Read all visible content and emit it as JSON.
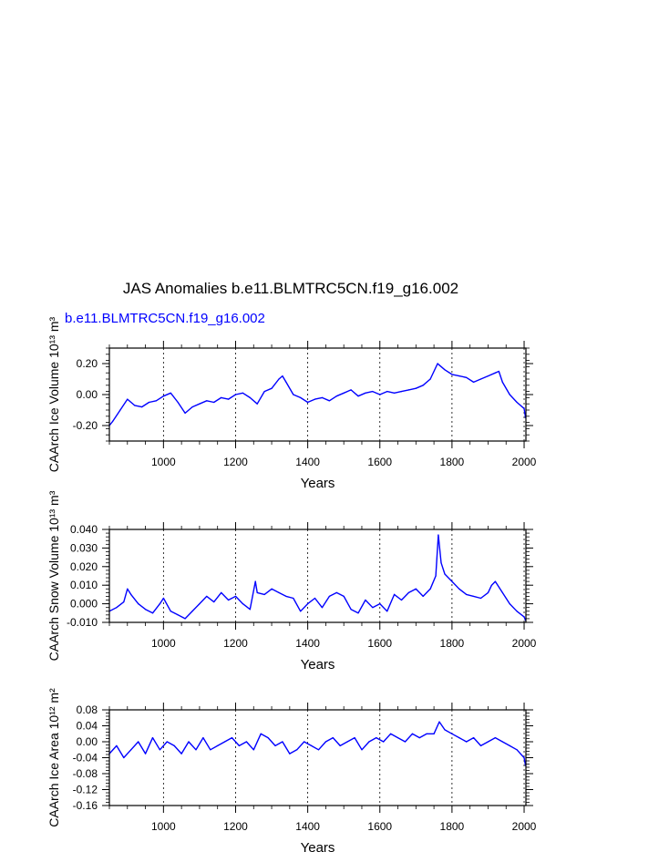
{
  "title": "JAS Anomalies b.e11.BLMTRC5CN.f19_g16.002",
  "legend_label": "b.e11.BLMTRC5CN.f19_g16.002",
  "colors": {
    "series": "#0000ff",
    "axis": "#000000"
  },
  "chart_data": [
    {
      "type": "line",
      "title": "",
      "xlabel": "Years",
      "ylabel": "CAArch Ice Volume 10¹³ m³",
      "xlim": [
        850,
        2005
      ],
      "ylim": [
        -0.3,
        0.3
      ],
      "xticks": [
        1000,
        1200,
        1400,
        1600,
        1800,
        2000
      ],
      "xtick_labels": [
        "1000",
        "1200",
        "1400",
        "1600",
        "1800",
        "2000"
      ],
      "yticks": [
        -0.2,
        0.0,
        0.2
      ],
      "ytick_labels": [
        "-0.20",
        "0.00",
        "0.20"
      ],
      "grid": "vertical dashed at major x ticks",
      "x": [
        850,
        860,
        880,
        900,
        920,
        940,
        960,
        980,
        1000,
        1020,
        1040,
        1060,
        1080,
        1100,
        1120,
        1140,
        1160,
        1180,
        1200,
        1220,
        1240,
        1260,
        1280,
        1300,
        1320,
        1330,
        1340,
        1360,
        1380,
        1400,
        1420,
        1440,
        1460,
        1480,
        1500,
        1520,
        1540,
        1560,
        1580,
        1600,
        1620,
        1640,
        1660,
        1680,
        1700,
        1720,
        1740,
        1760,
        1765,
        1780,
        1800,
        1820,
        1840,
        1860,
        1880,
        1900,
        1920,
        1930,
        1940,
        1960,
        1980,
        2000,
        2004
      ],
      "series": [
        {
          "name": "b.e11.BLMTRC5CN.f19_g16.002",
          "values": [
            -0.2,
            -0.17,
            -0.1,
            -0.03,
            -0.07,
            -0.08,
            -0.05,
            -0.04,
            -0.01,
            0.01,
            -0.05,
            -0.12,
            -0.08,
            -0.06,
            -0.04,
            -0.05,
            -0.02,
            -0.03,
            0.0,
            0.01,
            -0.02,
            -0.06,
            0.02,
            0.04,
            0.1,
            0.12,
            0.08,
            0.0,
            -0.02,
            -0.05,
            -0.03,
            -0.02,
            -0.04,
            -0.01,
            0.01,
            0.03,
            -0.01,
            0.01,
            0.02,
            0.0,
            0.02,
            0.01,
            0.02,
            0.03,
            0.04,
            0.06,
            0.1,
            0.2,
            0.19,
            0.16,
            0.13,
            0.12,
            0.11,
            0.08,
            0.1,
            0.12,
            0.14,
            0.15,
            0.08,
            0.0,
            -0.05,
            -0.09,
            -0.15
          ]
        }
      ]
    },
    {
      "type": "line",
      "title": "",
      "xlabel": "Years",
      "ylabel": "CAArch Snow Volume 10¹³ m³",
      "xlim": [
        850,
        2005
      ],
      "ylim": [
        -0.01,
        0.04
      ],
      "xticks": [
        1000,
        1200,
        1400,
        1600,
        1800,
        2000
      ],
      "xtick_labels": [
        "1000",
        "1200",
        "1400",
        "1600",
        "1800",
        "2000"
      ],
      "yticks": [
        -0.01,
        0.0,
        0.01,
        0.02,
        0.03,
        0.04
      ],
      "ytick_labels": [
        "-0.010",
        "0.000",
        "0.010",
        "0.020",
        "0.030",
        "0.040"
      ],
      "grid": "vertical dashed at major x ticks",
      "x": [
        850,
        870,
        890,
        900,
        910,
        930,
        950,
        970,
        990,
        1000,
        1020,
        1040,
        1060,
        1080,
        1100,
        1120,
        1140,
        1160,
        1180,
        1200,
        1220,
        1240,
        1255,
        1260,
        1280,
        1300,
        1320,
        1340,
        1360,
        1380,
        1400,
        1420,
        1440,
        1460,
        1480,
        1500,
        1520,
        1540,
        1560,
        1580,
        1600,
        1620,
        1640,
        1660,
        1680,
        1700,
        1720,
        1740,
        1755,
        1762,
        1770,
        1780,
        1800,
        1820,
        1840,
        1860,
        1880,
        1900,
        1910,
        1920,
        1940,
        1960,
        1980,
        2000,
        2004
      ],
      "series": [
        {
          "name": "b.e11.BLMTRC5CN.f19_g16.002",
          "values": [
            -0.004,
            -0.002,
            0.001,
            0.008,
            0.005,
            0.0,
            -0.003,
            -0.005,
            0.0,
            0.003,
            -0.004,
            -0.006,
            -0.008,
            -0.004,
            0.0,
            0.004,
            0.001,
            0.006,
            0.002,
            0.004,
            0.0,
            -0.003,
            0.012,
            0.006,
            0.005,
            0.008,
            0.006,
            0.004,
            0.003,
            -0.004,
            0.0,
            0.003,
            -0.002,
            0.004,
            0.006,
            0.004,
            -0.003,
            -0.005,
            0.002,
            -0.002,
            0.0,
            -0.004,
            0.005,
            0.002,
            0.006,
            0.008,
            0.004,
            0.008,
            0.015,
            0.037,
            0.022,
            0.016,
            0.012,
            0.008,
            0.005,
            0.004,
            0.003,
            0.006,
            0.01,
            0.012,
            0.006,
            0.0,
            -0.004,
            -0.007,
            -0.009
          ]
        }
      ]
    },
    {
      "type": "line",
      "title": "",
      "xlabel": "Years",
      "ylabel": "CAArch Ice Area 10¹² m²",
      "xlim": [
        850,
        2005
      ],
      "ylim": [
        -0.16,
        0.08
      ],
      "xticks": [
        1000,
        1200,
        1400,
        1600,
        1800,
        2000
      ],
      "xtick_labels": [
        "1000",
        "1200",
        "1400",
        "1600",
        "1800",
        "2000"
      ],
      "yticks": [
        -0.16,
        -0.12,
        -0.08,
        -0.04,
        0.0,
        0.04,
        0.08
      ],
      "ytick_labels": [
        "-0.16",
        "-0.12",
        "-0.08",
        "-0.04",
        "0.00",
        "0.04",
        "0.08"
      ],
      "grid": "vertical dashed at major x ticks",
      "x": [
        850,
        870,
        890,
        910,
        930,
        950,
        970,
        990,
        1010,
        1030,
        1050,
        1070,
        1090,
        1110,
        1130,
        1150,
        1170,
        1190,
        1210,
        1230,
        1250,
        1270,
        1290,
        1310,
        1330,
        1350,
        1370,
        1390,
        1410,
        1430,
        1450,
        1470,
        1490,
        1510,
        1530,
        1550,
        1570,
        1590,
        1610,
        1630,
        1650,
        1670,
        1690,
        1710,
        1730,
        1750,
        1765,
        1780,
        1800,
        1820,
        1840,
        1860,
        1880,
        1900,
        1920,
        1940,
        1960,
        1980,
        2000,
        2004
      ],
      "series": [
        {
          "name": "b.e11.BLMTRC5CN.f19_g16.002",
          "values": [
            -0.03,
            -0.01,
            -0.04,
            -0.02,
            0.0,
            -0.03,
            0.01,
            -0.02,
            0.0,
            -0.01,
            -0.03,
            0.0,
            -0.02,
            0.01,
            -0.02,
            -0.01,
            0.0,
            0.01,
            -0.01,
            0.0,
            -0.02,
            0.02,
            0.01,
            -0.01,
            0.0,
            -0.03,
            -0.02,
            0.0,
            -0.01,
            -0.02,
            0.0,
            0.01,
            -0.01,
            0.0,
            0.01,
            -0.02,
            0.0,
            0.01,
            0.0,
            0.02,
            0.01,
            0.0,
            0.02,
            0.01,
            0.02,
            0.02,
            0.05,
            0.03,
            0.02,
            0.01,
            0.0,
            0.01,
            -0.01,
            0.0,
            0.01,
            0.0,
            -0.01,
            -0.02,
            -0.04,
            -0.06
          ]
        }
      ]
    }
  ]
}
